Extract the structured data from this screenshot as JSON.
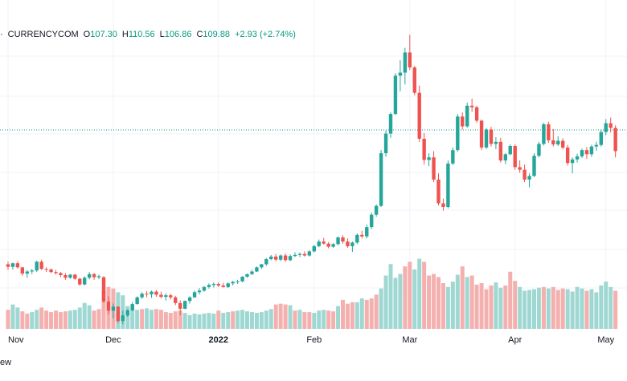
{
  "legend": {
    "prefix": "·",
    "symbol": "CURRENCYCOM",
    "o_key": "O",
    "o_val": "107.30",
    "h_key": "H",
    "h_val": "110.56",
    "l_key": "L",
    "l_val": "106.86",
    "c_key": "C",
    "c_val": "109.88",
    "change": "+2.93 (+2.74%)"
  },
  "footer": {
    "text": "ew"
  },
  "colors": {
    "up": "#26a69a",
    "down": "#ef5350",
    "vol_up": "#9fd8d2",
    "vol_down": "#f4b0ae",
    "grid": "#f0f3fa",
    "price_line": "#089981"
  },
  "chart_data": {
    "type": "candlestick",
    "price_line": 102.5,
    "ylim": [
      64,
      123
    ],
    "volume_max": 100,
    "x_ticks": [
      {
        "label": "Nov",
        "index": 0
      },
      {
        "label": "Dec",
        "index": 22
      },
      {
        "label": "2022",
        "index": 44,
        "bold": true
      },
      {
        "label": "Feb",
        "index": 64
      },
      {
        "label": "Mar",
        "index": 84
      },
      {
        "label": "Apr",
        "index": 106
      },
      {
        "label": "May",
        "index": 125
      }
    ],
    "candles": [
      [
        76.5,
        77.0,
        75.4,
        76.0
      ],
      [
        76.0,
        76.8,
        75.5,
        76.7
      ],
      [
        76.7,
        77.1,
        75.7,
        75.9
      ],
      [
        75.9,
        76.0,
        74.3,
        74.7
      ],
      [
        74.7,
        75.4,
        73.9,
        75.1
      ],
      [
        75.1,
        75.6,
        74.6,
        75.3
      ],
      [
        75.3,
        77.2,
        75.0,
        77.0
      ],
      [
        77.0,
        77.4,
        75.4,
        75.6
      ],
      [
        75.6,
        75.9,
        75.0,
        75.5
      ],
      [
        75.5,
        75.7,
        74.8,
        75.0
      ],
      [
        75.0,
        75.4,
        74.5,
        74.8
      ],
      [
        74.8,
        75.0,
        74.0,
        74.4
      ],
      [
        74.4,
        74.8,
        73.5,
        73.9
      ],
      [
        73.9,
        74.6,
        73.7,
        74.5
      ],
      [
        74.5,
        74.6,
        73.5,
        73.7
      ],
      [
        73.7,
        73.9,
        72.3,
        72.6
      ],
      [
        72.6,
        74.2,
        72.4,
        73.9
      ],
      [
        73.9,
        75.0,
        73.6,
        74.6
      ],
      [
        74.6,
        74.8,
        73.5,
        74.0
      ],
      [
        74.0,
        74.5,
        73.6,
        74.2
      ],
      [
        74.0,
        74.2,
        69.0,
        69.3
      ],
      [
        69.3,
        70.3,
        66.8,
        67.5
      ],
      [
        67.5,
        68.9,
        66.0,
        68.3
      ],
      [
        68.3,
        68.4,
        65.1,
        65.5
      ],
      [
        65.5,
        67.5,
        64.9,
        66.6
      ],
      [
        66.6,
        67.8,
        66.3,
        67.6
      ],
      [
        67.6,
        69.2,
        67.4,
        68.8
      ],
      [
        68.8,
        70.3,
        68.7,
        70.1
      ],
      [
        70.1,
        71.1,
        69.8,
        70.8
      ],
      [
        70.8,
        71.3,
        70.1,
        70.7
      ],
      [
        70.7,
        71.4,
        70.0,
        71.2
      ],
      [
        71.2,
        71.5,
        70.2,
        70.6
      ],
      [
        70.6,
        71.2,
        69.9,
        70.2
      ],
      [
        70.2,
        70.9,
        69.5,
        70.5
      ],
      [
        70.5,
        70.8,
        69.7,
        70.1
      ],
      [
        70.1,
        70.4,
        68.6,
        69.0
      ],
      [
        69.0,
        69.5,
        66.6,
        67.9
      ],
      [
        67.9,
        69.5,
        67.8,
        69.4
      ],
      [
        69.4,
        70.3,
        68.9,
        70.1
      ],
      [
        70.1,
        71.4,
        70.0,
        71.1
      ],
      [
        71.1,
        71.9,
        70.7,
        71.4
      ],
      [
        71.4,
        72.3,
        71.2,
        72.1
      ],
      [
        72.1,
        72.8,
        71.8,
        72.5
      ],
      [
        72.5,
        73.0,
        72.0,
        72.7
      ],
      [
        72.7,
        73.0,
        72.1,
        72.4
      ],
      [
        72.4,
        72.9,
        72.0,
        72.1
      ],
      [
        72.1,
        73.0,
        71.9,
        72.8
      ],
      [
        72.8,
        73.3,
        72.4,
        73.1
      ],
      [
        73.1,
        73.5,
        72.7,
        73.2
      ],
      [
        73.2,
        74.2,
        73.0,
        74.1
      ],
      [
        74.1,
        74.7,
        73.9,
        74.6
      ],
      [
        74.6,
        75.4,
        74.4,
        75.1
      ],
      [
        75.1,
        76.1,
        75.0,
        75.9
      ],
      [
        75.9,
        76.6,
        75.6,
        76.5
      ],
      [
        76.5,
        77.7,
        76.2,
        77.5
      ],
      [
        77.5,
        78.3,
        77.3,
        78.0
      ],
      [
        78.0,
        78.5,
        77.1,
        77.4
      ],
      [
        77.4,
        78.4,
        77.1,
        78.2
      ],
      [
        78.2,
        78.6,
        77.0,
        77.3
      ],
      [
        77.3,
        78.4,
        77.1,
        78.1
      ],
      [
        78.1,
        78.8,
        77.9,
        78.3
      ],
      [
        78.3,
        78.8,
        77.9,
        78.5
      ],
      [
        78.5,
        79.0,
        78.0,
        78.2
      ],
      [
        78.2,
        79.2,
        78.0,
        79.0
      ],
      [
        79.0,
        80.3,
        78.8,
        80.0
      ],
      [
        80.0,
        81.3,
        79.8,
        80.9
      ],
      [
        80.9,
        81.6,
        80.3,
        80.5
      ],
      [
        80.5,
        80.8,
        79.6,
        79.9
      ],
      [
        79.9,
        80.6,
        79.7,
        80.4
      ],
      [
        80.4,
        81.9,
        80.2,
        81.7
      ],
      [
        81.7,
        82.1,
        80.5,
        80.9
      ],
      [
        80.9,
        81.5,
        79.7,
        80.0
      ],
      [
        80.0,
        80.9,
        78.9,
        80.7
      ],
      [
        80.7,
        82.5,
        80.4,
        82.2
      ],
      [
        82.2,
        83.0,
        81.5,
        81.9
      ],
      [
        81.9,
        84.2,
        81.5,
        83.7
      ],
      [
        83.7,
        86.5,
        83.3,
        86.1
      ],
      [
        86.1,
        88.1,
        85.7,
        87.8
      ],
      [
        87.8,
        98.6,
        87.6,
        98.0
      ],
      [
        98.0,
        102.4,
        97.3,
        101.8
      ],
      [
        101.8,
        105.9,
        101.0,
        105.6
      ],
      [
        105.6,
        113.5,
        105.4,
        113.0
      ],
      [
        113.0,
        116.0,
        110.0,
        113.6
      ],
      [
        113.6,
        118.4,
        111.3,
        117.5
      ],
      [
        117.5,
        120.9,
        114.1,
        114.6
      ],
      [
        114.6,
        114.9,
        109.2,
        109.7
      ],
      [
        109.7,
        111.1,
        100.2,
        100.8
      ],
      [
        100.8,
        101.9,
        95.8,
        96.7
      ],
      [
        96.7,
        98.0,
        95.5,
        97.2
      ],
      [
        97.2,
        98.4,
        92.4,
        92.9
      ],
      [
        92.9,
        94.1,
        87.9,
        88.3
      ],
      [
        88.3,
        89.2,
        86.9,
        87.6
      ],
      [
        87.6,
        96.6,
        87.3,
        96.0
      ],
      [
        96.0,
        99.1,
        95.7,
        98.6
      ],
      [
        98.6,
        105.6,
        98.3,
        105.1
      ],
      [
        105.1,
        105.9,
        102.6,
        103.2
      ],
      [
        103.2,
        107.8,
        102.9,
        107.2
      ],
      [
        107.2,
        108.6,
        106.0,
        106.9
      ],
      [
        106.9,
        107.2,
        103.9,
        104.3
      ],
      [
        104.3,
        104.5,
        98.6,
        99.1
      ],
      [
        99.1,
        102.9,
        98.8,
        102.6
      ],
      [
        102.6,
        103.1,
        99.3,
        99.8
      ],
      [
        99.8,
        101.1,
        98.8,
        100.2
      ],
      [
        100.2,
        101.0,
        96.2,
        96.6
      ],
      [
        96.6,
        98.0,
        95.9,
        97.8
      ],
      [
        97.8,
        99.7,
        97.6,
        99.4
      ],
      [
        99.4,
        99.7,
        94.8,
        95.3
      ],
      [
        95.3,
        96.6,
        94.2,
        94.8
      ],
      [
        94.8,
        95.8,
        92.4,
        92.9
      ],
      [
        92.9,
        94.1,
        91.4,
        93.6
      ],
      [
        93.6,
        98.0,
        93.4,
        97.5
      ],
      [
        97.5,
        100.2,
        97.2,
        99.8
      ],
      [
        99.8,
        103.9,
        99.5,
        103.6
      ],
      [
        103.6,
        104.1,
        100.0,
        100.5
      ],
      [
        100.5,
        102.7,
        99.3,
        99.7
      ],
      [
        99.7,
        101.3,
        99.4,
        100.4
      ],
      [
        100.4,
        100.9,
        98.7,
        99.1
      ],
      [
        99.1,
        99.6,
        95.6,
        96.1
      ],
      [
        96.1,
        97.2,
        94.1,
        96.8
      ],
      [
        96.8,
        97.9,
        96.2,
        97.4
      ],
      [
        97.4,
        98.9,
        97.1,
        98.6
      ],
      [
        98.6,
        99.2,
        96.9,
        97.8
      ],
      [
        97.8,
        99.6,
        97.3,
        99.3
      ],
      [
        99.3,
        100.2,
        98.5,
        99.6
      ],
      [
        99.6,
        102.6,
        99.3,
        102.1
      ],
      [
        102.1,
        104.6,
        101.5,
        103.8
      ],
      [
        103.8,
        104.9,
        102.0,
        102.9
      ],
      [
        102.9,
        103.4,
        97.2,
        98.4
      ]
    ],
    "volumes": [
      [
        25,
        1
      ],
      [
        32,
        0
      ],
      [
        28,
        0
      ],
      [
        23,
        1
      ],
      [
        20,
        1
      ],
      [
        22,
        0
      ],
      [
        25,
        0
      ],
      [
        28,
        1
      ],
      [
        24,
        1
      ],
      [
        22,
        1
      ],
      [
        24,
        1
      ],
      [
        22,
        1
      ],
      [
        23,
        1
      ],
      [
        24,
        0
      ],
      [
        25,
        0
      ],
      [
        28,
        0
      ],
      [
        34,
        0
      ],
      [
        31,
        0
      ],
      [
        24,
        1
      ],
      [
        26,
        1
      ],
      [
        50,
        1
      ],
      [
        55,
        1
      ],
      [
        53,
        1
      ],
      [
        48,
        0
      ],
      [
        44,
        0
      ],
      [
        30,
        0
      ],
      [
        27,
        0
      ],
      [
        25,
        0
      ],
      [
        26,
        1
      ],
      [
        27,
        0
      ],
      [
        25,
        0
      ],
      [
        26,
        1
      ],
      [
        25,
        1
      ],
      [
        22,
        1
      ],
      [
        21,
        1
      ],
      [
        23,
        1
      ],
      [
        24,
        1
      ],
      [
        21,
        0
      ],
      [
        18,
        0
      ],
      [
        20,
        0
      ],
      [
        19,
        0
      ],
      [
        20,
        0
      ],
      [
        21,
        0
      ],
      [
        20,
        0
      ],
      [
        24,
        1
      ],
      [
        21,
        0
      ],
      [
        22,
        0
      ],
      [
        23,
        1
      ],
      [
        24,
        0
      ],
      [
        25,
        0
      ],
      [
        23,
        0
      ],
      [
        22,
        0
      ],
      [
        21,
        0
      ],
      [
        22,
        0
      ],
      [
        24,
        0
      ],
      [
        26,
        0
      ],
      [
        32,
        1
      ],
      [
        33,
        1
      ],
      [
        32,
        1
      ],
      [
        31,
        0
      ],
      [
        24,
        1
      ],
      [
        25,
        0
      ],
      [
        22,
        1
      ],
      [
        22,
        1
      ],
      [
        21,
        0
      ],
      [
        24,
        0
      ],
      [
        25,
        0
      ],
      [
        24,
        1
      ],
      [
        23,
        1
      ],
      [
        30,
        0
      ],
      [
        38,
        1
      ],
      [
        33,
        1
      ],
      [
        35,
        1
      ],
      [
        35,
        0
      ],
      [
        40,
        0
      ],
      [
        38,
        1
      ],
      [
        40,
        1
      ],
      [
        45,
        1
      ],
      [
        53,
        0
      ],
      [
        70,
        0
      ],
      [
        85,
        0
      ],
      [
        67,
        0
      ],
      [
        72,
        0
      ],
      [
        82,
        1
      ],
      [
        88,
        1
      ],
      [
        78,
        0
      ],
      [
        92,
        0
      ],
      [
        88,
        1
      ],
      [
        70,
        1
      ],
      [
        72,
        1
      ],
      [
        68,
        1
      ],
      [
        60,
        1
      ],
      [
        55,
        0
      ],
      [
        62,
        0
      ],
      [
        71,
        0
      ],
      [
        82,
        1
      ],
      [
        68,
        0
      ],
      [
        70,
        1
      ],
      [
        58,
        1
      ],
      [
        60,
        1
      ],
      [
        52,
        1
      ],
      [
        57,
        1
      ],
      [
        61,
        0
      ],
      [
        54,
        0
      ],
      [
        57,
        1
      ],
      [
        75,
        1
      ],
      [
        63,
        1
      ],
      [
        55,
        0
      ],
      [
        50,
        0
      ],
      [
        51,
        0
      ],
      [
        52,
        0
      ],
      [
        54,
        0
      ],
      [
        55,
        1
      ],
      [
        53,
        0
      ],
      [
        55,
        1
      ],
      [
        51,
        1
      ],
      [
        53,
        1
      ],
      [
        52,
        0
      ],
      [
        49,
        0
      ],
      [
        55,
        0
      ],
      [
        53,
        0
      ],
      [
        50,
        1
      ],
      [
        52,
        0
      ],
      [
        48,
        0
      ],
      [
        57,
        0
      ],
      [
        62,
        0
      ],
      [
        55,
        0
      ],
      [
        50,
        1
      ]
    ]
  }
}
